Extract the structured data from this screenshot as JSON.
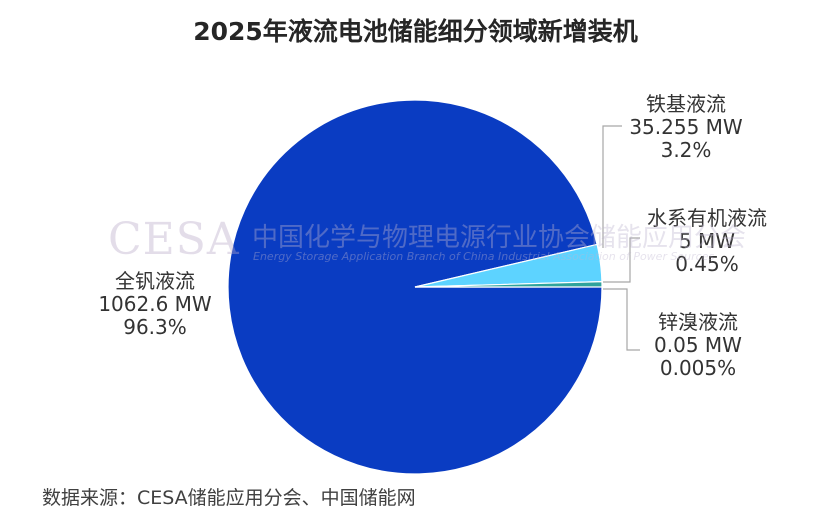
{
  "chart_data": {
    "type": "pie",
    "title": "2025年液流电池储能细分领域新增装机",
    "unit": "MW",
    "slices": [
      {
        "name": "全钒液流",
        "value": 1062.6,
        "value_label": "1062.6 MW",
        "percent_label": "96.3%",
        "color": "#0a3cc2"
      },
      {
        "name": "铁基液流",
        "value": 35.255,
        "value_label": "35.255 MW",
        "percent_label": "3.2%",
        "color": "#5dd3ff"
      },
      {
        "name": "水系有机液流",
        "value": 5,
        "value_label": "5 MW",
        "percent_label": "0.45%",
        "color": "#2fa39c"
      },
      {
        "name": "锌溴液流",
        "value": 0.05,
        "value_label": "0.05 MW",
        "percent_label": "0.005%",
        "color": "#1e6b8a"
      }
    ],
    "legend": "none",
    "data_labels": "outside-with-leader-lines"
  },
  "source": "数据来源：CESA储能应用分会、中国储能网",
  "watermark": {
    "logo": "CESA",
    "org_cn": "中国化学与物理电源行业协会储能应用分会",
    "org_en": "Energy Storage Application Branch of China Industrial Association of Power Sources"
  }
}
